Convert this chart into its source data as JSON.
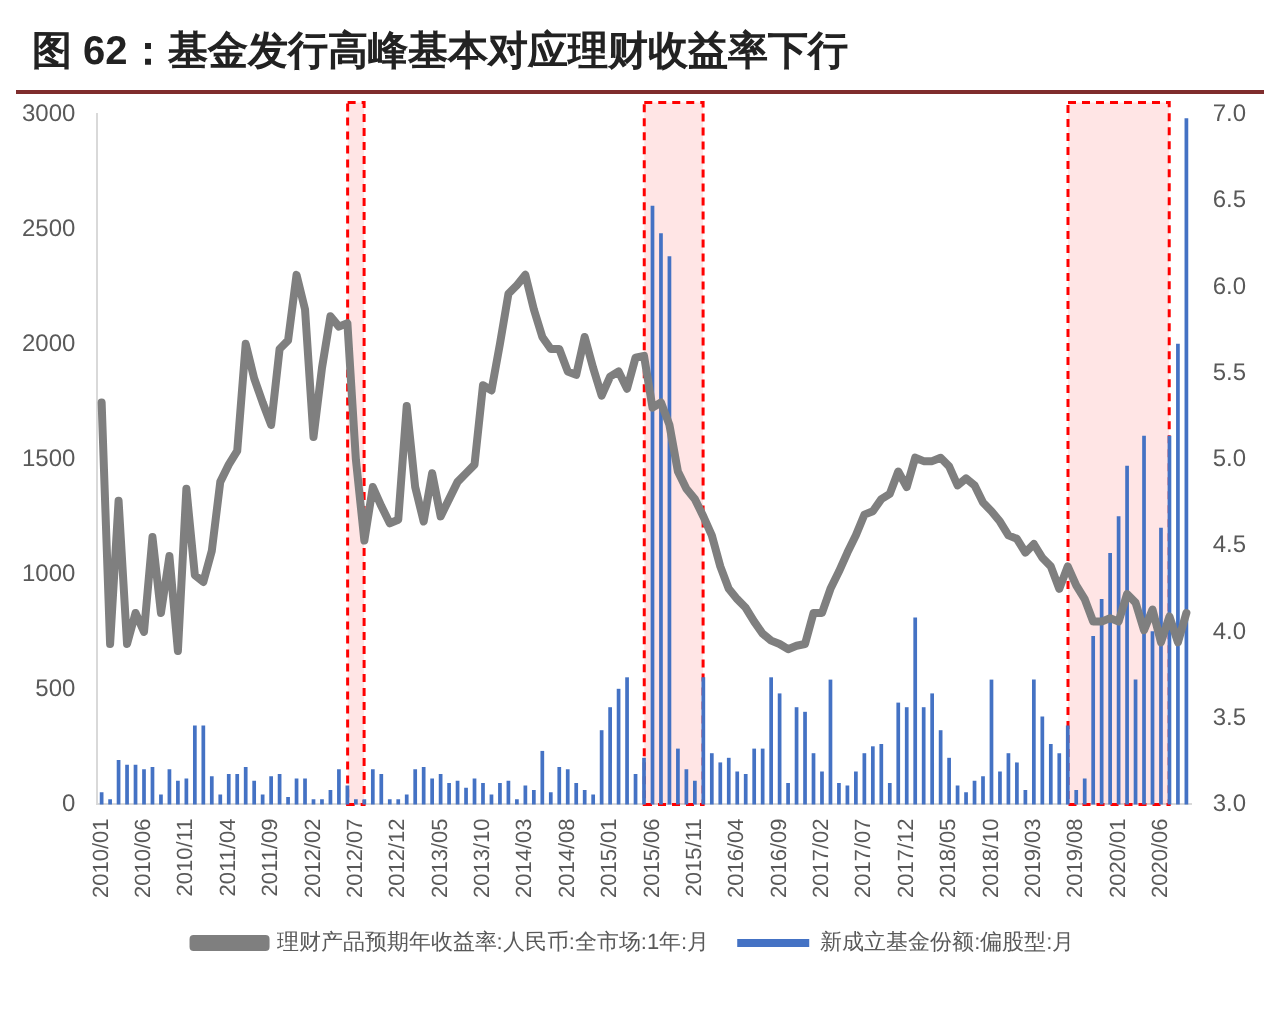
{
  "chart_data": {
    "type": "bar",
    "title": "图 62：基金发行高峰基本对应理财收益率下行",
    "categories": [
      "2010/01",
      null,
      null,
      null,
      null,
      "2010/06",
      null,
      null,
      null,
      null,
      "2010/11",
      null,
      null,
      null,
      null,
      "2011/04",
      null,
      null,
      null,
      null,
      "2011/09",
      null,
      null,
      null,
      null,
      "2012/02",
      null,
      null,
      null,
      null,
      "2012/07",
      null,
      null,
      null,
      null,
      "2012/12",
      null,
      null,
      null,
      null,
      "2013/05",
      null,
      null,
      null,
      null,
      "2013/10",
      null,
      null,
      null,
      null,
      "2014/03",
      null,
      null,
      null,
      null,
      "2014/08",
      null,
      null,
      null,
      null,
      "2015/01",
      null,
      null,
      null,
      null,
      "2015/06",
      null,
      null,
      null,
      null,
      "2015/11",
      null,
      null,
      null,
      null,
      "2016/04",
      null,
      null,
      null,
      null,
      "2016/09",
      null,
      null,
      null,
      null,
      "2017/02",
      null,
      null,
      null,
      null,
      "2017/07",
      null,
      null,
      null,
      null,
      "2017/12",
      null,
      null,
      null,
      null,
      "2018/05",
      null,
      null,
      null,
      null,
      "2018/10",
      null,
      null,
      null,
      null,
      "2019/03",
      null,
      null,
      null,
      null,
      "2019/08",
      null,
      null,
      null,
      null,
      "2020/01",
      null,
      null,
      null,
      null,
      "2020/06",
      null,
      null,
      null
    ],
    "series": [
      {
        "name": "新成立基金份额:偏股型:月",
        "color": "#4472c4",
        "values": [
          50,
          20,
          190,
          170,
          170,
          150,
          160,
          40,
          150,
          100,
          110,
          340,
          340,
          120,
          40,
          130,
          130,
          160,
          100,
          40,
          120,
          130,
          30,
          110,
          110,
          20,
          20,
          60,
          150,
          80,
          20,
          20,
          150,
          130,
          20,
          20,
          40,
          150,
          160,
          110,
          130,
          90,
          100,
          70,
          110,
          90,
          40,
          90,
          100,
          20,
          80,
          60,
          230,
          50,
          160,
          150,
          90,
          60,
          40,
          320,
          420,
          500,
          550,
          130,
          200,
          2600,
          2480,
          2380,
          240,
          150,
          100,
          550,
          220,
          180,
          200,
          140,
          130,
          240,
          240,
          550,
          480,
          90,
          420,
          400,
          220,
          140,
          540,
          90,
          80,
          140,
          220,
          250,
          260,
          90,
          440,
          420,
          810,
          420,
          480,
          320,
          200,
          80,
          50,
          100,
          120,
          540,
          140,
          220,
          180,
          60,
          540,
          380,
          260,
          220,
          340,
          60,
          110,
          730,
          890,
          1090,
          1250,
          1470,
          540,
          1600,
          750,
          1200,
          1600,
          2000,
          2980
        ]
      },
      {
        "name": "理财产品预期年收益率:人民币:全市场:1年:月",
        "type": "line",
        "axis": "y2",
        "color": "#7f7f7f",
        "values": [
          5.33,
          3.93,
          4.76,
          3.93,
          4.11,
          4.0,
          4.55,
          4.11,
          4.44,
          3.89,
          4.83,
          4.33,
          4.29,
          4.47,
          4.87,
          4.97,
          5.05,
          5.67,
          5.47,
          5.33,
          5.2,
          5.64,
          5.69,
          6.07,
          5.87,
          5.13,
          5.53,
          5.83,
          5.77,
          5.79,
          5.0,
          4.53,
          4.84,
          4.73,
          4.63,
          4.65,
          5.31,
          4.84,
          4.64,
          4.92,
          4.67,
          4.77,
          4.87,
          4.92,
          4.97,
          5.43,
          5.4,
          5.67,
          5.96,
          6.01,
          6.07,
          5.87,
          5.71,
          5.64,
          5.64,
          5.51,
          5.49,
          5.71,
          5.53,
          5.37,
          5.48,
          5.51,
          5.41,
          5.59,
          5.6,
          5.3,
          5.33,
          5.2,
          4.93,
          4.83,
          4.77,
          4.67,
          4.56,
          4.38,
          4.25,
          4.19,
          4.14,
          4.06,
          3.99,
          3.95,
          3.93,
          3.9,
          3.92,
          3.93,
          4.11,
          4.11,
          4.25,
          4.35,
          4.46,
          4.56,
          4.68,
          4.7,
          4.77,
          4.8,
          4.93,
          4.84,
          5.01,
          4.99,
          4.99,
          5.01,
          4.96,
          4.85,
          4.89,
          4.85,
          4.75,
          4.7,
          4.64,
          4.56,
          4.54,
          4.46,
          4.51,
          4.43,
          4.38,
          4.25,
          4.38,
          4.27,
          4.19,
          4.06,
          4.06,
          4.08,
          4.06,
          4.22,
          4.17,
          4.01,
          4.13,
          3.94,
          4.09,
          3.94,
          4.11
        ]
      }
    ],
    "ylim": [
      0,
      3000
    ],
    "yticks": [
      0,
      500,
      1000,
      1500,
      2000,
      2500,
      3000
    ],
    "y2lim": [
      3.0,
      7.0
    ],
    "y2ticks": [
      {
        "value": 3,
        "label": "3.0"
      },
      {
        "value": 3.5,
        "label": "3.5"
      },
      {
        "value": 4,
        "label": "4.0"
      },
      {
        "value": 4.5,
        "label": "4.5"
      },
      {
        "value": 5,
        "label": "5.0"
      },
      {
        "value": 5.5,
        "label": "5.5"
      },
      {
        "value": 6,
        "label": "6.0"
      },
      {
        "value": 6.5,
        "label": "6.5"
      },
      {
        "value": 7,
        "label": "7.0"
      }
    ],
    "bands": [
      {
        "axis": "x",
        "from": "2012/07",
        "to": "2012/07",
        "color": "#ff0000"
      },
      {
        "axis": "x",
        "from": "2015/06",
        "to": "2015/11",
        "color": "#ff0000"
      },
      {
        "axis": "x",
        "from": "2019/08",
        "to": "2020/06",
        "color": "#ff0000"
      }
    ],
    "grid": false,
    "legend": "bottom",
    "marker": "none",
    "line_style": "solid"
  }
}
